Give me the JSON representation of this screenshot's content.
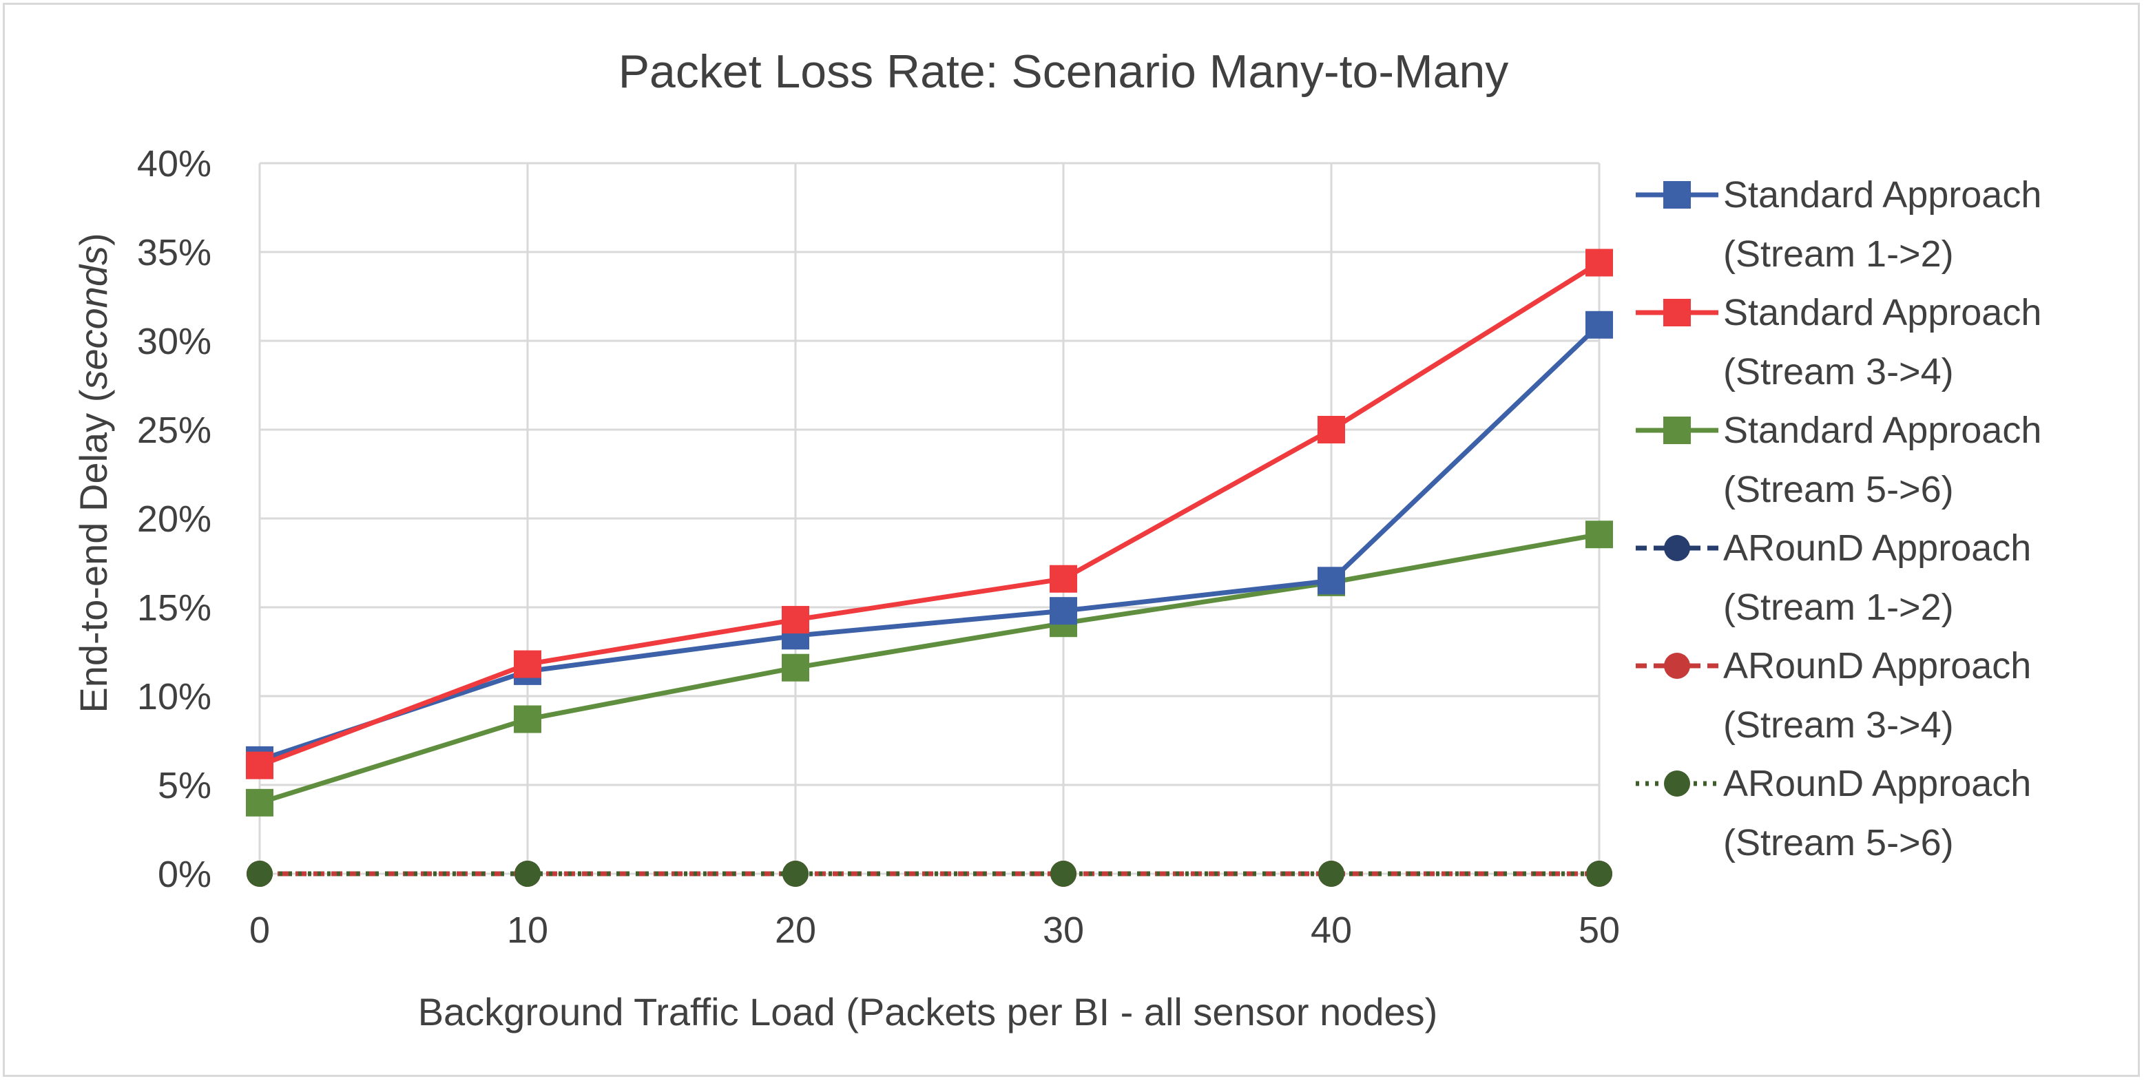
{
  "chart_data": {
    "type": "line",
    "title": "Packet Loss Rate: Scenario Many-to-Many",
    "xlabel": "Background Traffic Load (Packets per BI - all sensor nodes)",
    "ylabel_main": "End-to-end Delay (",
    "ylabel_italic": "seconds",
    "ylabel_end": ")",
    "x": [
      0,
      10,
      20,
      30,
      40,
      50
    ],
    "x_tick_labels": [
      "0",
      "10",
      "20",
      "30",
      "40",
      "50"
    ],
    "ylim": [
      0,
      0.4
    ],
    "y_ticks": [
      0,
      0.05,
      0.1,
      0.15,
      0.2,
      0.25,
      0.3,
      0.35,
      0.4
    ],
    "y_tick_labels": [
      "0%",
      "5%",
      "10%",
      "15%",
      "20%",
      "25%",
      "30%",
      "35%",
      "40%"
    ],
    "grid": true,
    "legend_position": "right",
    "series": [
      {
        "id": "std12",
        "name_line1": "Standard Approach",
        "name_line2": "(Stream 1->2)",
        "color": "#3c61a8",
        "marker": "square",
        "dash": "solid",
        "values": [
          0.064,
          0.114,
          0.134,
          0.148,
          0.165,
          0.309
        ]
      },
      {
        "id": "std34",
        "name_line1": "Standard Approach",
        "name_line2": "(Stream 3->4)",
        "color": "#ef3a3e",
        "marker": "square",
        "dash": "solid",
        "values": [
          0.061,
          0.118,
          0.143,
          0.166,
          0.25,
          0.344
        ]
      },
      {
        "id": "std56",
        "name_line1": "Standard Approach",
        "name_line2": "(Stream 5->6)",
        "color": "#5f8f3e",
        "marker": "square",
        "dash": "solid",
        "values": [
          0.04,
          0.087,
          0.116,
          0.141,
          0.164,
          0.191
        ]
      },
      {
        "id": "ar12",
        "name_line1": "ARounD Approach",
        "name_line2": "(Stream 1->2)",
        "color": "#263d6e",
        "marker": "circle",
        "dash": "dashed",
        "values": [
          0,
          0,
          0,
          0,
          0,
          0
        ]
      },
      {
        "id": "ar34",
        "name_line1": "ARounD Approach",
        "name_line2": "(Stream 3->4)",
        "color": "#c73a3a",
        "marker": "circle",
        "dash": "dashed",
        "values": [
          0,
          0,
          0,
          0,
          0,
          0
        ]
      },
      {
        "id": "ar56",
        "name_line1": "ARounD Approach",
        "name_line2": "(Stream 5->6)",
        "color": "#3e5f2b",
        "marker": "circle",
        "dash": "dotted",
        "values": [
          0,
          0,
          0,
          0,
          0,
          0
        ]
      }
    ]
  }
}
